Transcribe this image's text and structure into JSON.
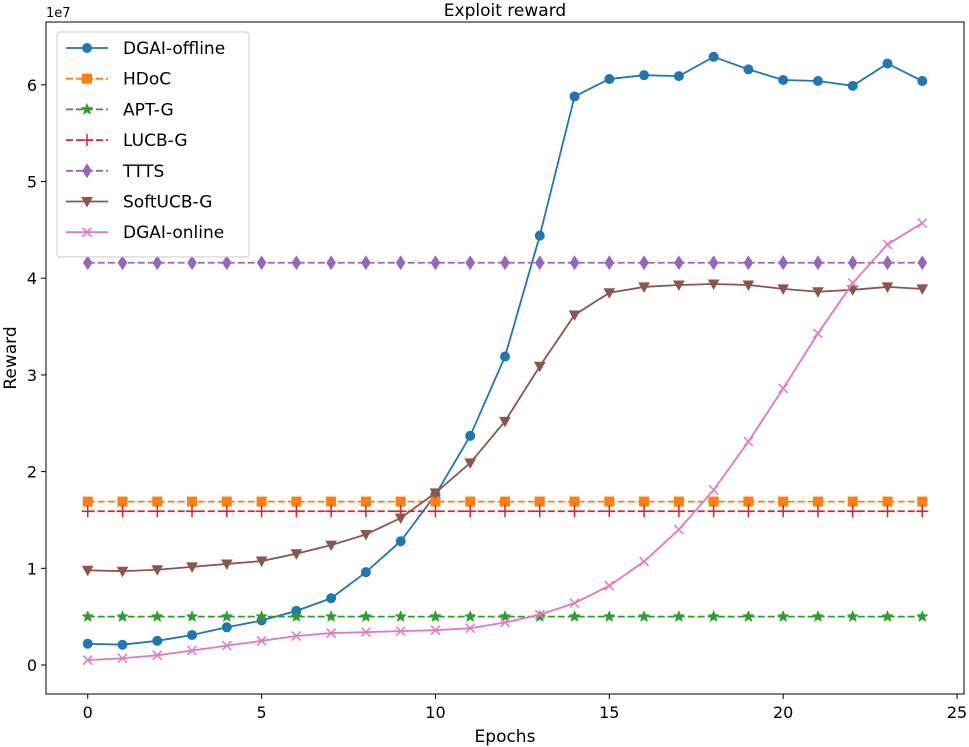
{
  "chart_data": {
    "type": "line",
    "title": "Exploit reward",
    "xlabel": "Epochs",
    "ylabel": "Reward",
    "y_offset_text": "1e7",
    "xlim": [
      -1.2,
      25.2
    ],
    "ylim": [
      -3000000,
      66500000
    ],
    "xticks": [
      0,
      5,
      10,
      15,
      20,
      25
    ],
    "yticks": [
      0,
      10000000,
      20000000,
      30000000,
      40000000,
      50000000,
      60000000
    ],
    "ytick_labels": [
      "0",
      "1",
      "2",
      "3",
      "4",
      "5",
      "6"
    ],
    "grid": false,
    "legend_position": "top-left",
    "x": [
      0,
      1,
      2,
      3,
      4,
      5,
      6,
      7,
      8,
      9,
      10,
      11,
      12,
      13,
      14,
      15,
      16,
      17,
      18,
      19,
      20,
      21,
      22,
      23,
      24
    ],
    "series": [
      {
        "name": "DGAI-offline",
        "color": "#1f77b4",
        "dash": "solid",
        "marker": "circle",
        "values": [
          2200000,
          2100000,
          2500000,
          3100000,
          3900000,
          4600000,
          5600000,
          6900000,
          9600000,
          12800000,
          17600000,
          23700000,
          31900000,
          44400000,
          58800000,
          60600000,
          61000000,
          60900000,
          62900000,
          61600000,
          60500000,
          60400000,
          59900000,
          62200000,
          60400000
        ]
      },
      {
        "name": "HDoC",
        "color": "#ff7f0e",
        "dash": "dashed",
        "marker": "square",
        "values": [
          16900000,
          16900000,
          16900000,
          16900000,
          16900000,
          16900000,
          16900000,
          16900000,
          16900000,
          16900000,
          16900000,
          16900000,
          16900000,
          16900000,
          16900000,
          16900000,
          16900000,
          16900000,
          16900000,
          16900000,
          16900000,
          16900000,
          16900000,
          16900000,
          16900000
        ]
      },
      {
        "name": "APT-G",
        "color": "#2ca02c",
        "dash": "dashed",
        "marker": "star",
        "values": [
          5000000,
          5000000,
          5000000,
          5000000,
          5000000,
          5000000,
          5000000,
          5000000,
          5000000,
          5000000,
          5000000,
          5000000,
          5000000,
          5000000,
          5000000,
          5000000,
          5000000,
          5000000,
          5000000,
          5000000,
          5000000,
          5000000,
          5000000,
          5000000,
          5000000
        ]
      },
      {
        "name": "LUCB-G",
        "color": "#d62728",
        "dash": "dashed",
        "marker": "plus",
        "values": [
          15900000,
          15900000,
          15900000,
          15900000,
          15900000,
          15900000,
          15900000,
          15900000,
          15900000,
          15900000,
          15900000,
          15900000,
          15900000,
          15900000,
          15900000,
          15900000,
          15900000,
          15900000,
          15900000,
          15900000,
          15900000,
          15900000,
          15900000,
          15900000,
          15900000
        ]
      },
      {
        "name": "TTTS",
        "color": "#9467bd",
        "dash": "dashed",
        "marker": "diamond",
        "values": [
          41600000,
          41600000,
          41600000,
          41600000,
          41600000,
          41600000,
          41600000,
          41600000,
          41600000,
          41600000,
          41600000,
          41600000,
          41600000,
          41600000,
          41600000,
          41600000,
          41600000,
          41600000,
          41600000,
          41600000,
          41600000,
          41600000,
          41600000,
          41600000,
          41600000
        ]
      },
      {
        "name": "SoftUCB-G",
        "color": "#8c564b",
        "dash": "solid",
        "marker": "triangle-down",
        "values": [
          9800000,
          9700000,
          9850000,
          10150000,
          10450000,
          10750000,
          11500000,
          12400000,
          13500000,
          15200000,
          17800000,
          20900000,
          25200000,
          30900000,
          36200000,
          38500000,
          39100000,
          39300000,
          39400000,
          39300000,
          38900000,
          38600000,
          38800000,
          39100000,
          38900000
        ]
      },
      {
        "name": "DGAI-online",
        "color": "#e377c2",
        "dash": "solid",
        "marker": "x",
        "values": [
          500000,
          700000,
          1000000,
          1500000,
          2000000,
          2500000,
          3000000,
          3300000,
          3400000,
          3500000,
          3600000,
          3800000,
          4400000,
          5200000,
          6400000,
          8200000,
          10700000,
          14000000,
          18100000,
          23100000,
          28600000,
          34300000,
          39500000,
          43500000,
          45700000
        ]
      }
    ]
  }
}
